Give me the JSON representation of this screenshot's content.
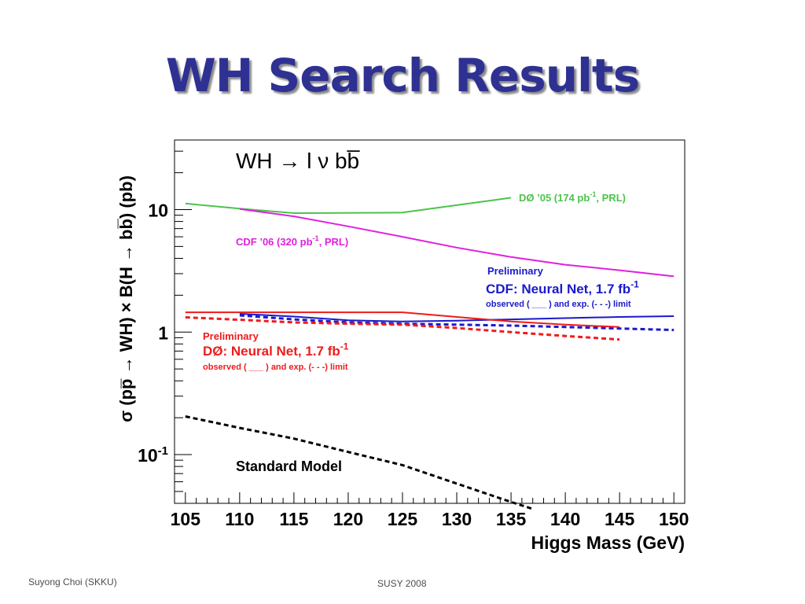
{
  "slide": {
    "title": "WH Search Results",
    "footer_left": "Suyong Choi (SKKU)",
    "footer_center": "SUSY 2008"
  },
  "chart_data": {
    "type": "line",
    "title": "WH → l ν bb̅",
    "xlabel": "Higgs Mass (GeV)",
    "ylabel": "σ (pp̅ → WH) × B(H → bb̅) (pb)",
    "xlim": [
      104,
      151
    ],
    "ylim": [
      0.04,
      37
    ],
    "yscale": "log",
    "x_ticks": [
      105,
      110,
      115,
      120,
      125,
      130,
      135,
      140,
      145,
      150
    ],
    "y_ticks": [
      {
        "value": 0.1,
        "base": "10",
        "exp": "-1"
      },
      {
        "value": 1,
        "base": "1",
        "exp": ""
      },
      {
        "value": 10,
        "base": "10",
        "exp": ""
      }
    ],
    "series": [
      {
        "name": "DØ ’05 (174 pb-1, PRL)",
        "color": "#4cc34c",
        "dash": "solid",
        "x": [
          105,
          110,
          115,
          125,
          135
        ],
        "y": [
          11.2,
          10.2,
          9.35,
          9.45,
          12.5
        ]
      },
      {
        "name": "CDF ’06 (320 pb-1, PRL)",
        "color": "#e020e0",
        "dash": "solid",
        "x": [
          110,
          115,
          120,
          125,
          130,
          135,
          140,
          145,
          150
        ],
        "y": [
          10.1,
          8.8,
          7.3,
          6.0,
          4.9,
          4.1,
          3.55,
          3.2,
          2.85
        ]
      },
      {
        "name": "CDF: Neural Net, 1.7 fb-1 observed",
        "color": "#1a1acc",
        "dash": "solid",
        "x": [
          110,
          115,
          120,
          125,
          130,
          135,
          140,
          145,
          150
        ],
        "y": [
          1.41,
          1.34,
          1.25,
          1.22,
          1.24,
          1.27,
          1.3,
          1.33,
          1.35
        ]
      },
      {
        "name": "CDF: Neural Net, 1.7 fb-1 expected",
        "color": "#1a1acc",
        "dash": "dashed",
        "x": [
          110,
          115,
          120,
          125,
          130,
          135,
          140,
          145,
          150
        ],
        "y": [
          1.37,
          1.27,
          1.2,
          1.17,
          1.15,
          1.13,
          1.1,
          1.07,
          1.04
        ]
      },
      {
        "name": "DØ: Neural Net, 1.7 fb-1 observed",
        "color": "#ee1c1c",
        "dash": "solid",
        "x": [
          105,
          110,
          115,
          120,
          125,
          130,
          135,
          140,
          145
        ],
        "y": [
          1.45,
          1.45,
          1.45,
          1.45,
          1.45,
          1.33,
          1.22,
          1.15,
          1.1
        ]
      },
      {
        "name": "DØ: Neural Net, 1.7 fb-1 expected",
        "color": "#ee1c1c",
        "dash": "dashed",
        "x": [
          105,
          110,
          115,
          120,
          125,
          130,
          135,
          140,
          145
        ],
        "y": [
          1.32,
          1.26,
          1.2,
          1.17,
          1.15,
          1.08,
          1.0,
          0.93,
          0.87
        ]
      },
      {
        "name": "Standard Model",
        "color": "#000000",
        "dash": "dashed",
        "x": [
          105,
          110,
          115,
          120,
          125,
          130,
          135,
          137
        ],
        "y": [
          0.205,
          0.165,
          0.135,
          0.105,
          0.082,
          0.058,
          0.041,
          0.036
        ]
      }
    ],
    "annotations": {
      "d0_05": {
        "base": "DØ ’05  (174 pb",
        "sup": "-1",
        "tail": ", PRL)",
        "color": "#4cc34c"
      },
      "cdf_06": {
        "base": "CDF ’06  (320 pb",
        "sup": "-1",
        "tail": ", PRL)",
        "color": "#e020e0"
      },
      "cdf_prelim": "Preliminary",
      "cdf_nn": {
        "base": "CDF: Neural Net, 1.7 fb",
        "sup": "-1"
      },
      "cdf_limit": "observed ( ___ )  and exp. (- - -) limit",
      "d0_prelim": "Preliminary",
      "d0_nn": {
        "base": "DØ:  Neural Net, 1.7 fb",
        "sup": "-1"
      },
      "d0_limit": "observed ( ___ )  and exp. (- - -) limit",
      "sm": "Standard Model",
      "blue": "#1a1acc",
      "red": "#ee1c1c"
    }
  }
}
